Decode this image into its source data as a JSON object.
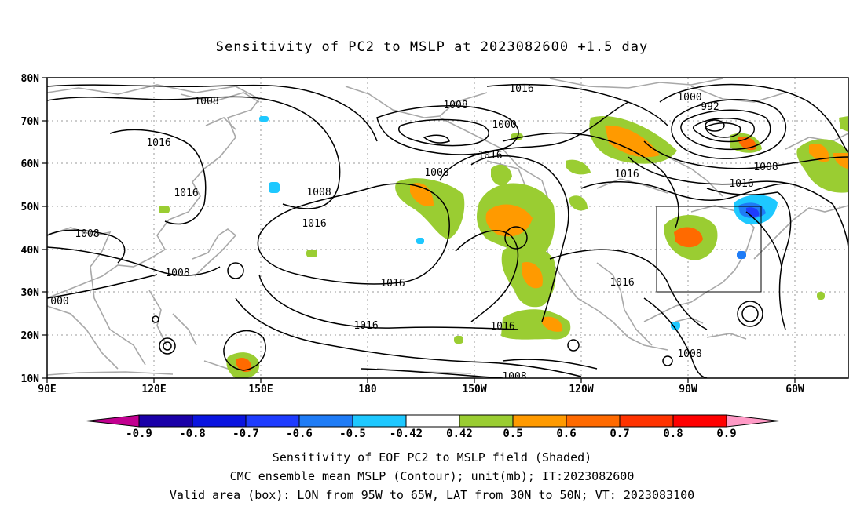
{
  "title": "Sensitivity of PC2 to MSLP at 2023082600 +1.5 day",
  "axes": {
    "lat_labels": [
      "80N",
      "70N",
      "60N",
      "50N",
      "40N",
      "30N",
      "20N",
      "10N"
    ],
    "lon_labels": [
      "90E",
      "120E",
      "150E",
      "180",
      "150W",
      "120W",
      "90W",
      "60W"
    ]
  },
  "contour_labels": {
    "c1008_nw": "1008",
    "c1016_w": "1016",
    "c1016_w2": "1016",
    "c1008_w": "1008",
    "c1008_sw": "1008",
    "c000_edge": "000",
    "c1008_pac": "1008",
    "c1008_np": "1008",
    "c1016_pac": "1016",
    "c1016_pac2": "1016",
    "c1016_s": "1016",
    "c1016_top": "1016",
    "c1000_mid": "1000",
    "c1016_cent": "1016",
    "c1016_canada": "1016",
    "c1016_bot": "1016",
    "c1000_ne": "1000",
    "c992_ne": "992",
    "c1008_ne": "1008",
    "c1016_ne": "1016",
    "c1016_us": "1016",
    "c1008_gulf": "1008",
    "c1008_bottom": "1008"
  },
  "colorbar": {
    "labels": [
      "-0.9",
      "-0.8",
      "-0.7",
      "-0.6",
      "-0.5",
      "-0.42",
      "0.42",
      "0.5",
      "0.6",
      "0.7",
      "0.8",
      "0.9"
    ],
    "colors": [
      "#1a00a8",
      "#0a14e0",
      "#1e3cff",
      "#1f7cf6",
      "#1ec8ff",
      "#ffffff",
      "#9acd32",
      "#ff9a00",
      "#ff6a00",
      "#ff3300",
      "#ff0000"
    ],
    "low_arrow_color": "#c20090",
    "high_arrow_color": "#ff9ac6"
  },
  "captions": {
    "line1": "Sensitivity of EOF PC2 to MSLP field (Shaded)",
    "line2": "CMC ensemble mean MSLP (Contour); unit(mb); IT:2023082600",
    "line3": "Valid area (box): LON from 95W to 65W, LAT from 30N to 50N; VT: 2023083100"
  }
}
